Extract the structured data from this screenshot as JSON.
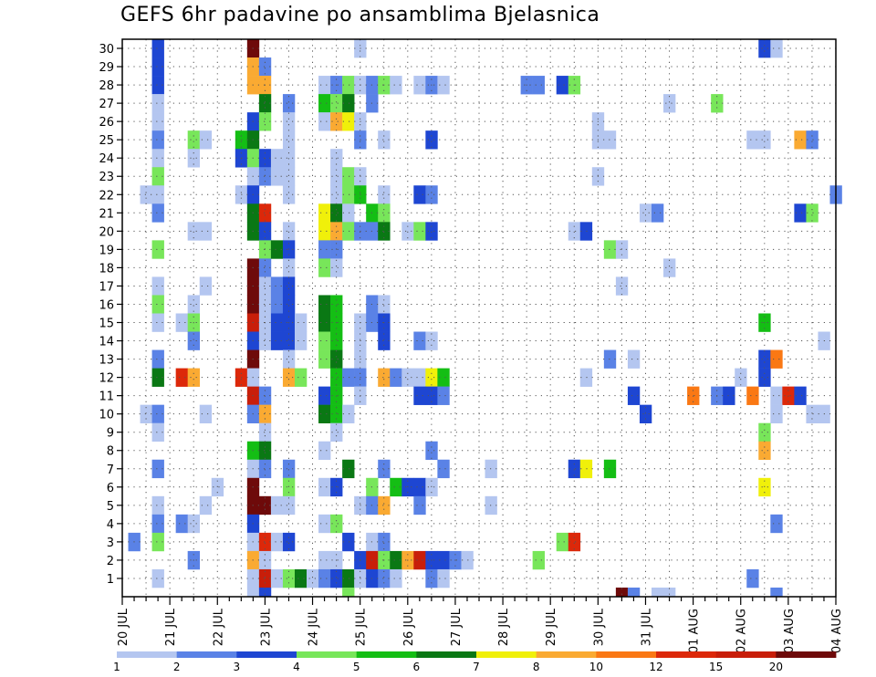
{
  "chart_data": {
    "type": "heatmap",
    "title": "GEFS 6hr padavine po ansamblima Bjelasnica",
    "x_axis": {
      "unit": "6-hour steps from 20 JUL 00Z",
      "range": [
        0,
        60
      ],
      "tick_labels": [
        {
          "label": "20 JUL",
          "pos": 0
        },
        {
          "label": "21 JUL",
          "pos": 4
        },
        {
          "label": "22 JUL",
          "pos": 8
        },
        {
          "label": "23 JUL",
          "pos": 12
        },
        {
          "label": "24 JUL",
          "pos": 16
        },
        {
          "label": "25 JUL",
          "pos": 20
        },
        {
          "label": "26 JUL",
          "pos": 24
        },
        {
          "label": "27 JUL",
          "pos": 28
        },
        {
          "label": "28 JUL",
          "pos": 32
        },
        {
          "label": "29 JUL",
          "pos": 36
        },
        {
          "label": "30 JUL",
          "pos": 40
        },
        {
          "label": "31 JUL",
          "pos": 44
        },
        {
          "label": "01 AUG",
          "pos": 48
        },
        {
          "label": "02 AUG",
          "pos": 52
        },
        {
          "label": "03 AUG",
          "pos": 56
        },
        {
          "label": "04 AUG",
          "pos": 60
        }
      ]
    },
    "y_axis": {
      "label": "",
      "range": [
        0,
        30
      ],
      "tick_labels": [
        "1",
        "2",
        "3",
        "4",
        "5",
        "6",
        "7",
        "8",
        "9",
        "10",
        "11",
        "12",
        "13",
        "14",
        "15",
        "16",
        "17",
        "18",
        "19",
        "20",
        "21",
        "22",
        "23",
        "24",
        "25",
        "26",
        "27",
        "28",
        "29",
        "30"
      ]
    },
    "grid": true,
    "legend": {
      "placement": "bottom",
      "labels": [
        "1",
        "2",
        "3",
        "4",
        "5",
        "6",
        "7",
        "8",
        "10",
        "12",
        "15",
        "20"
      ],
      "colors": [
        "#b4c6f0",
        "#5a82e6",
        "#1e46d2",
        "#78e65a",
        "#14be14",
        "#0a7814",
        "#f0f00a",
        "#faaa32",
        "#fa7814",
        "#dc280a",
        "#c81e0a",
        "#6e0a0a"
      ]
    },
    "cells": [
      [
        3,
        30,
        3
      ],
      [
        11,
        30,
        12
      ],
      [
        20,
        30,
        1
      ],
      [
        54,
        30,
        3
      ],
      [
        55,
        30,
        1
      ],
      [
        3,
        29,
        3
      ],
      [
        11,
        29,
        8
      ],
      [
        12,
        29,
        2
      ],
      [
        3,
        28,
        3
      ],
      [
        11,
        28,
        8
      ],
      [
        12,
        28,
        8
      ],
      [
        17,
        28,
        1
      ],
      [
        18,
        28,
        2
      ],
      [
        19,
        28,
        4
      ],
      [
        20,
        28,
        1
      ],
      [
        21,
        28,
        2
      ],
      [
        22,
        28,
        4
      ],
      [
        23,
        28,
        1
      ],
      [
        25,
        28,
        1
      ],
      [
        26,
        28,
        2
      ],
      [
        27,
        28,
        1
      ],
      [
        34,
        28,
        2
      ],
      [
        35,
        28,
        2
      ],
      [
        37,
        28,
        3
      ],
      [
        38,
        28,
        4
      ],
      [
        3,
        27,
        1
      ],
      [
        12,
        27,
        6
      ],
      [
        14,
        27,
        2
      ],
      [
        17,
        27,
        5
      ],
      [
        18,
        27,
        4
      ],
      [
        19,
        27,
        6
      ],
      [
        21,
        27,
        2
      ],
      [
        46,
        27,
        1
      ],
      [
        50,
        27,
        4
      ],
      [
        3,
        26,
        1
      ],
      [
        11,
        26,
        3
      ],
      [
        12,
        26,
        4
      ],
      [
        14,
        26,
        1
      ],
      [
        17,
        26,
        1
      ],
      [
        18,
        26,
        8
      ],
      [
        19,
        26,
        7
      ],
      [
        20,
        26,
        1
      ],
      [
        40,
        26,
        1
      ],
      [
        3,
        25,
        2
      ],
      [
        6,
        25,
        4
      ],
      [
        7,
        25,
        1
      ],
      [
        10,
        25,
        5
      ],
      [
        11,
        25,
        6
      ],
      [
        14,
        25,
        1
      ],
      [
        20,
        25,
        2
      ],
      [
        22,
        25,
        1
      ],
      [
        26,
        25,
        3
      ],
      [
        40,
        25,
        1
      ],
      [
        41,
        25,
        1
      ],
      [
        53,
        25,
        1
      ],
      [
        54,
        25,
        1
      ],
      [
        57,
        25,
        8
      ],
      [
        58,
        25,
        2
      ],
      [
        3,
        24,
        1
      ],
      [
        6,
        24,
        1
      ],
      [
        10,
        24,
        3
      ],
      [
        11,
        24,
        4
      ],
      [
        12,
        24,
        3
      ],
      [
        13,
        24,
        1
      ],
      [
        14,
        24,
        1
      ],
      [
        18,
        24,
        1
      ],
      [
        3,
        23,
        4
      ],
      [
        11,
        23,
        1
      ],
      [
        12,
        23,
        2
      ],
      [
        13,
        23,
        1
      ],
      [
        14,
        23,
        1
      ],
      [
        18,
        23,
        1
      ],
      [
        19,
        23,
        4
      ],
      [
        20,
        23,
        1
      ],
      [
        40,
        23,
        1
      ],
      [
        2,
        22,
        1
      ],
      [
        3,
        22,
        1
      ],
      [
        10,
        22,
        1
      ],
      [
        11,
        22,
        3
      ],
      [
        14,
        22,
        1
      ],
      [
        18,
        22,
        1
      ],
      [
        19,
        22,
        4
      ],
      [
        20,
        22,
        5
      ],
      [
        22,
        22,
        1
      ],
      [
        25,
        22,
        3
      ],
      [
        26,
        22,
        2
      ],
      [
        60,
        22,
        2
      ],
      [
        3,
        21,
        2
      ],
      [
        11,
        21,
        6
      ],
      [
        12,
        21,
        10
      ],
      [
        17,
        21,
        7
      ],
      [
        18,
        21,
        6
      ],
      [
        19,
        21,
        1
      ],
      [
        21,
        21,
        5
      ],
      [
        22,
        21,
        4
      ],
      [
        44,
        21,
        1
      ],
      [
        45,
        21,
        2
      ],
      [
        57,
        21,
        3
      ],
      [
        58,
        21,
        4
      ],
      [
        6,
        20,
        1
      ],
      [
        7,
        20,
        1
      ],
      [
        11,
        20,
        6
      ],
      [
        12,
        20,
        3
      ],
      [
        14,
        20,
        1
      ],
      [
        17,
        20,
        7
      ],
      [
        18,
        20,
        8
      ],
      [
        19,
        20,
        4
      ],
      [
        20,
        20,
        2
      ],
      [
        21,
        20,
        2
      ],
      [
        22,
        20,
        6
      ],
      [
        24,
        20,
        1
      ],
      [
        25,
        20,
        4
      ],
      [
        26,
        20,
        3
      ],
      [
        38,
        20,
        1
      ],
      [
        39,
        20,
        3
      ],
      [
        3,
        19,
        4
      ],
      [
        12,
        19,
        4
      ],
      [
        13,
        19,
        6
      ],
      [
        14,
        19,
        3
      ],
      [
        17,
        19,
        2
      ],
      [
        18,
        19,
        2
      ],
      [
        41,
        19,
        4
      ],
      [
        42,
        19,
        1
      ],
      [
        11,
        18,
        12
      ],
      [
        12,
        18,
        2
      ],
      [
        14,
        18,
        1
      ],
      [
        17,
        18,
        4
      ],
      [
        18,
        18,
        1
      ],
      [
        46,
        18,
        1
      ],
      [
        3,
        17,
        1
      ],
      [
        7,
        17,
        1
      ],
      [
        11,
        17,
        12
      ],
      [
        12,
        17,
        1
      ],
      [
        13,
        17,
        2
      ],
      [
        14,
        17,
        3
      ],
      [
        42,
        17,
        1
      ],
      [
        3,
        16,
        4
      ],
      [
        6,
        16,
        1
      ],
      [
        11,
        16,
        12
      ],
      [
        12,
        16,
        1
      ],
      [
        13,
        16,
        2
      ],
      [
        14,
        16,
        3
      ],
      [
        17,
        16,
        6
      ],
      [
        18,
        16,
        5
      ],
      [
        21,
        16,
        2
      ],
      [
        22,
        16,
        1
      ],
      [
        3,
        15,
        1
      ],
      [
        5,
        15,
        1
      ],
      [
        6,
        15,
        4
      ],
      [
        11,
        15,
        11
      ],
      [
        12,
        15,
        1
      ],
      [
        13,
        15,
        3
      ],
      [
        14,
        15,
        3
      ],
      [
        15,
        15,
        1
      ],
      [
        17,
        15,
        6
      ],
      [
        18,
        15,
        5
      ],
      [
        20,
        15,
        1
      ],
      [
        21,
        15,
        2
      ],
      [
        22,
        15,
        3
      ],
      [
        54,
        15,
        5
      ],
      [
        6,
        14,
        2
      ],
      [
        11,
        14,
        3
      ],
      [
        12,
        14,
        1
      ],
      [
        13,
        14,
        3
      ],
      [
        14,
        14,
        3
      ],
      [
        15,
        14,
        1
      ],
      [
        17,
        14,
        4
      ],
      [
        18,
        14,
        5
      ],
      [
        20,
        14,
        1
      ],
      [
        22,
        14,
        3
      ],
      [
        25,
        14,
        2
      ],
      [
        26,
        14,
        1
      ],
      [
        59,
        14,
        1
      ],
      [
        3,
        13,
        2
      ],
      [
        11,
        13,
        12
      ],
      [
        14,
        13,
        1
      ],
      [
        17,
        13,
        4
      ],
      [
        18,
        13,
        6
      ],
      [
        20,
        13,
        1
      ],
      [
        41,
        13,
        2
      ],
      [
        43,
        13,
        1
      ],
      [
        54,
        13,
        3
      ],
      [
        55,
        13,
        9
      ],
      [
        3,
        12,
        6
      ],
      [
        5,
        12,
        10
      ],
      [
        6,
        12,
        8
      ],
      [
        10,
        12,
        10
      ],
      [
        11,
        12,
        1
      ],
      [
        14,
        12,
        8
      ],
      [
        15,
        12,
        4
      ],
      [
        18,
        12,
        5
      ],
      [
        19,
        12,
        2
      ],
      [
        20,
        12,
        2
      ],
      [
        22,
        12,
        8
      ],
      [
        23,
        12,
        2
      ],
      [
        24,
        12,
        1
      ],
      [
        25,
        12,
        1
      ],
      [
        26,
        12,
        7
      ],
      [
        27,
        12,
        5
      ],
      [
        39,
        12,
        1
      ],
      [
        52,
        12,
        1
      ],
      [
        54,
        12,
        3
      ],
      [
        11,
        11,
        11
      ],
      [
        12,
        11,
        2
      ],
      [
        17,
        11,
        3
      ],
      [
        18,
        11,
        5
      ],
      [
        20,
        11,
        1
      ],
      [
        25,
        11,
        3
      ],
      [
        26,
        11,
        3
      ],
      [
        27,
        11,
        2
      ],
      [
        43,
        11,
        3
      ],
      [
        48,
        11,
        9
      ],
      [
        50,
        11,
        2
      ],
      [
        51,
        11,
        3
      ],
      [
        53,
        11,
        9
      ],
      [
        55,
        11,
        1
      ],
      [
        56,
        11,
        10
      ],
      [
        57,
        11,
        3
      ],
      [
        2,
        10,
        1
      ],
      [
        3,
        10,
        2
      ],
      [
        7,
        10,
        1
      ],
      [
        11,
        10,
        2
      ],
      [
        12,
        10,
        8
      ],
      [
        17,
        10,
        6
      ],
      [
        18,
        10,
        5
      ],
      [
        19,
        10,
        1
      ],
      [
        44,
        10,
        3
      ],
      [
        55,
        10,
        1
      ],
      [
        58,
        10,
        1
      ],
      [
        59,
        10,
        1
      ],
      [
        3,
        9,
        1
      ],
      [
        12,
        9,
        1
      ],
      [
        18,
        9,
        1
      ],
      [
        54,
        9,
        4
      ],
      [
        11,
        8,
        5
      ],
      [
        12,
        8,
        6
      ],
      [
        17,
        8,
        1
      ],
      [
        26,
        8,
        2
      ],
      [
        54,
        8,
        8
      ],
      [
        3,
        7,
        2
      ],
      [
        11,
        7,
        1
      ],
      [
        12,
        7,
        2
      ],
      [
        14,
        7,
        2
      ],
      [
        19,
        7,
        6
      ],
      [
        22,
        7,
        2
      ],
      [
        27,
        7,
        2
      ],
      [
        31,
        7,
        1
      ],
      [
        38,
        7,
        3
      ],
      [
        39,
        7,
        7
      ],
      [
        41,
        7,
        5
      ],
      [
        8,
        6,
        1
      ],
      [
        11,
        6,
        12
      ],
      [
        14,
        6,
        4
      ],
      [
        17,
        6,
        1
      ],
      [
        18,
        6,
        3
      ],
      [
        21,
        6,
        4
      ],
      [
        23,
        6,
        5
      ],
      [
        24,
        6,
        3
      ],
      [
        25,
        6,
        3
      ],
      [
        26,
        6,
        1
      ],
      [
        54,
        6,
        7
      ],
      [
        3,
        5,
        1
      ],
      [
        7,
        5,
        1
      ],
      [
        11,
        5,
        12
      ],
      [
        12,
        5,
        12
      ],
      [
        13,
        5,
        1
      ],
      [
        14,
        5,
        1
      ],
      [
        20,
        5,
        1
      ],
      [
        21,
        5,
        2
      ],
      [
        22,
        5,
        8
      ],
      [
        25,
        5,
        2
      ],
      [
        31,
        5,
        1
      ],
      [
        3,
        4,
        2
      ],
      [
        5,
        4,
        2
      ],
      [
        6,
        4,
        1
      ],
      [
        11,
        4,
        3
      ],
      [
        17,
        4,
        1
      ],
      [
        18,
        4,
        4
      ],
      [
        55,
        4,
        2
      ],
      [
        1,
        3,
        2
      ],
      [
        3,
        3,
        4
      ],
      [
        11,
        3,
        1
      ],
      [
        12,
        3,
        10
      ],
      [
        13,
        3,
        1
      ],
      [
        14,
        3,
        3
      ],
      [
        19,
        3,
        3
      ],
      [
        21,
        3,
        1
      ],
      [
        22,
        3,
        2
      ],
      [
        37,
        3,
        4
      ],
      [
        38,
        3,
        10
      ],
      [
        6,
        2,
        2
      ],
      [
        11,
        2,
        8
      ],
      [
        12,
        2,
        1
      ],
      [
        17,
        2,
        1
      ],
      [
        18,
        2,
        1
      ],
      [
        20,
        2,
        3
      ],
      [
        21,
        2,
        11
      ],
      [
        22,
        2,
        4
      ],
      [
        23,
        2,
        6
      ],
      [
        24,
        2,
        8
      ],
      [
        25,
        2,
        11
      ],
      [
        26,
        2,
        3
      ],
      [
        27,
        2,
        3
      ],
      [
        28,
        2,
        2
      ],
      [
        29,
        2,
        1
      ],
      [
        35,
        2,
        4
      ],
      [
        3,
        1,
        1
      ],
      [
        11,
        1,
        1
      ],
      [
        12,
        1,
        11
      ],
      [
        13,
        1,
        1
      ],
      [
        14,
        1,
        4
      ],
      [
        15,
        1,
        6
      ],
      [
        16,
        1,
        1
      ],
      [
        17,
        1,
        2
      ],
      [
        18,
        1,
        3
      ],
      [
        19,
        1,
        6
      ],
      [
        20,
        1,
        1
      ],
      [
        21,
        1,
        3
      ],
      [
        22,
        1,
        2
      ],
      [
        23,
        1,
        1
      ],
      [
        26,
        1,
        2
      ],
      [
        27,
        1,
        1
      ],
      [
        53,
        1,
        2
      ],
      [
        11,
        0,
        1
      ],
      [
        12,
        0,
        3
      ],
      [
        19,
        0,
        4
      ],
      [
        42,
        0,
        12
      ],
      [
        43,
        0,
        2
      ],
      [
        45,
        0,
        1
      ],
      [
        46,
        0,
        1
      ],
      [
        55,
        0,
        2
      ]
    ]
  }
}
